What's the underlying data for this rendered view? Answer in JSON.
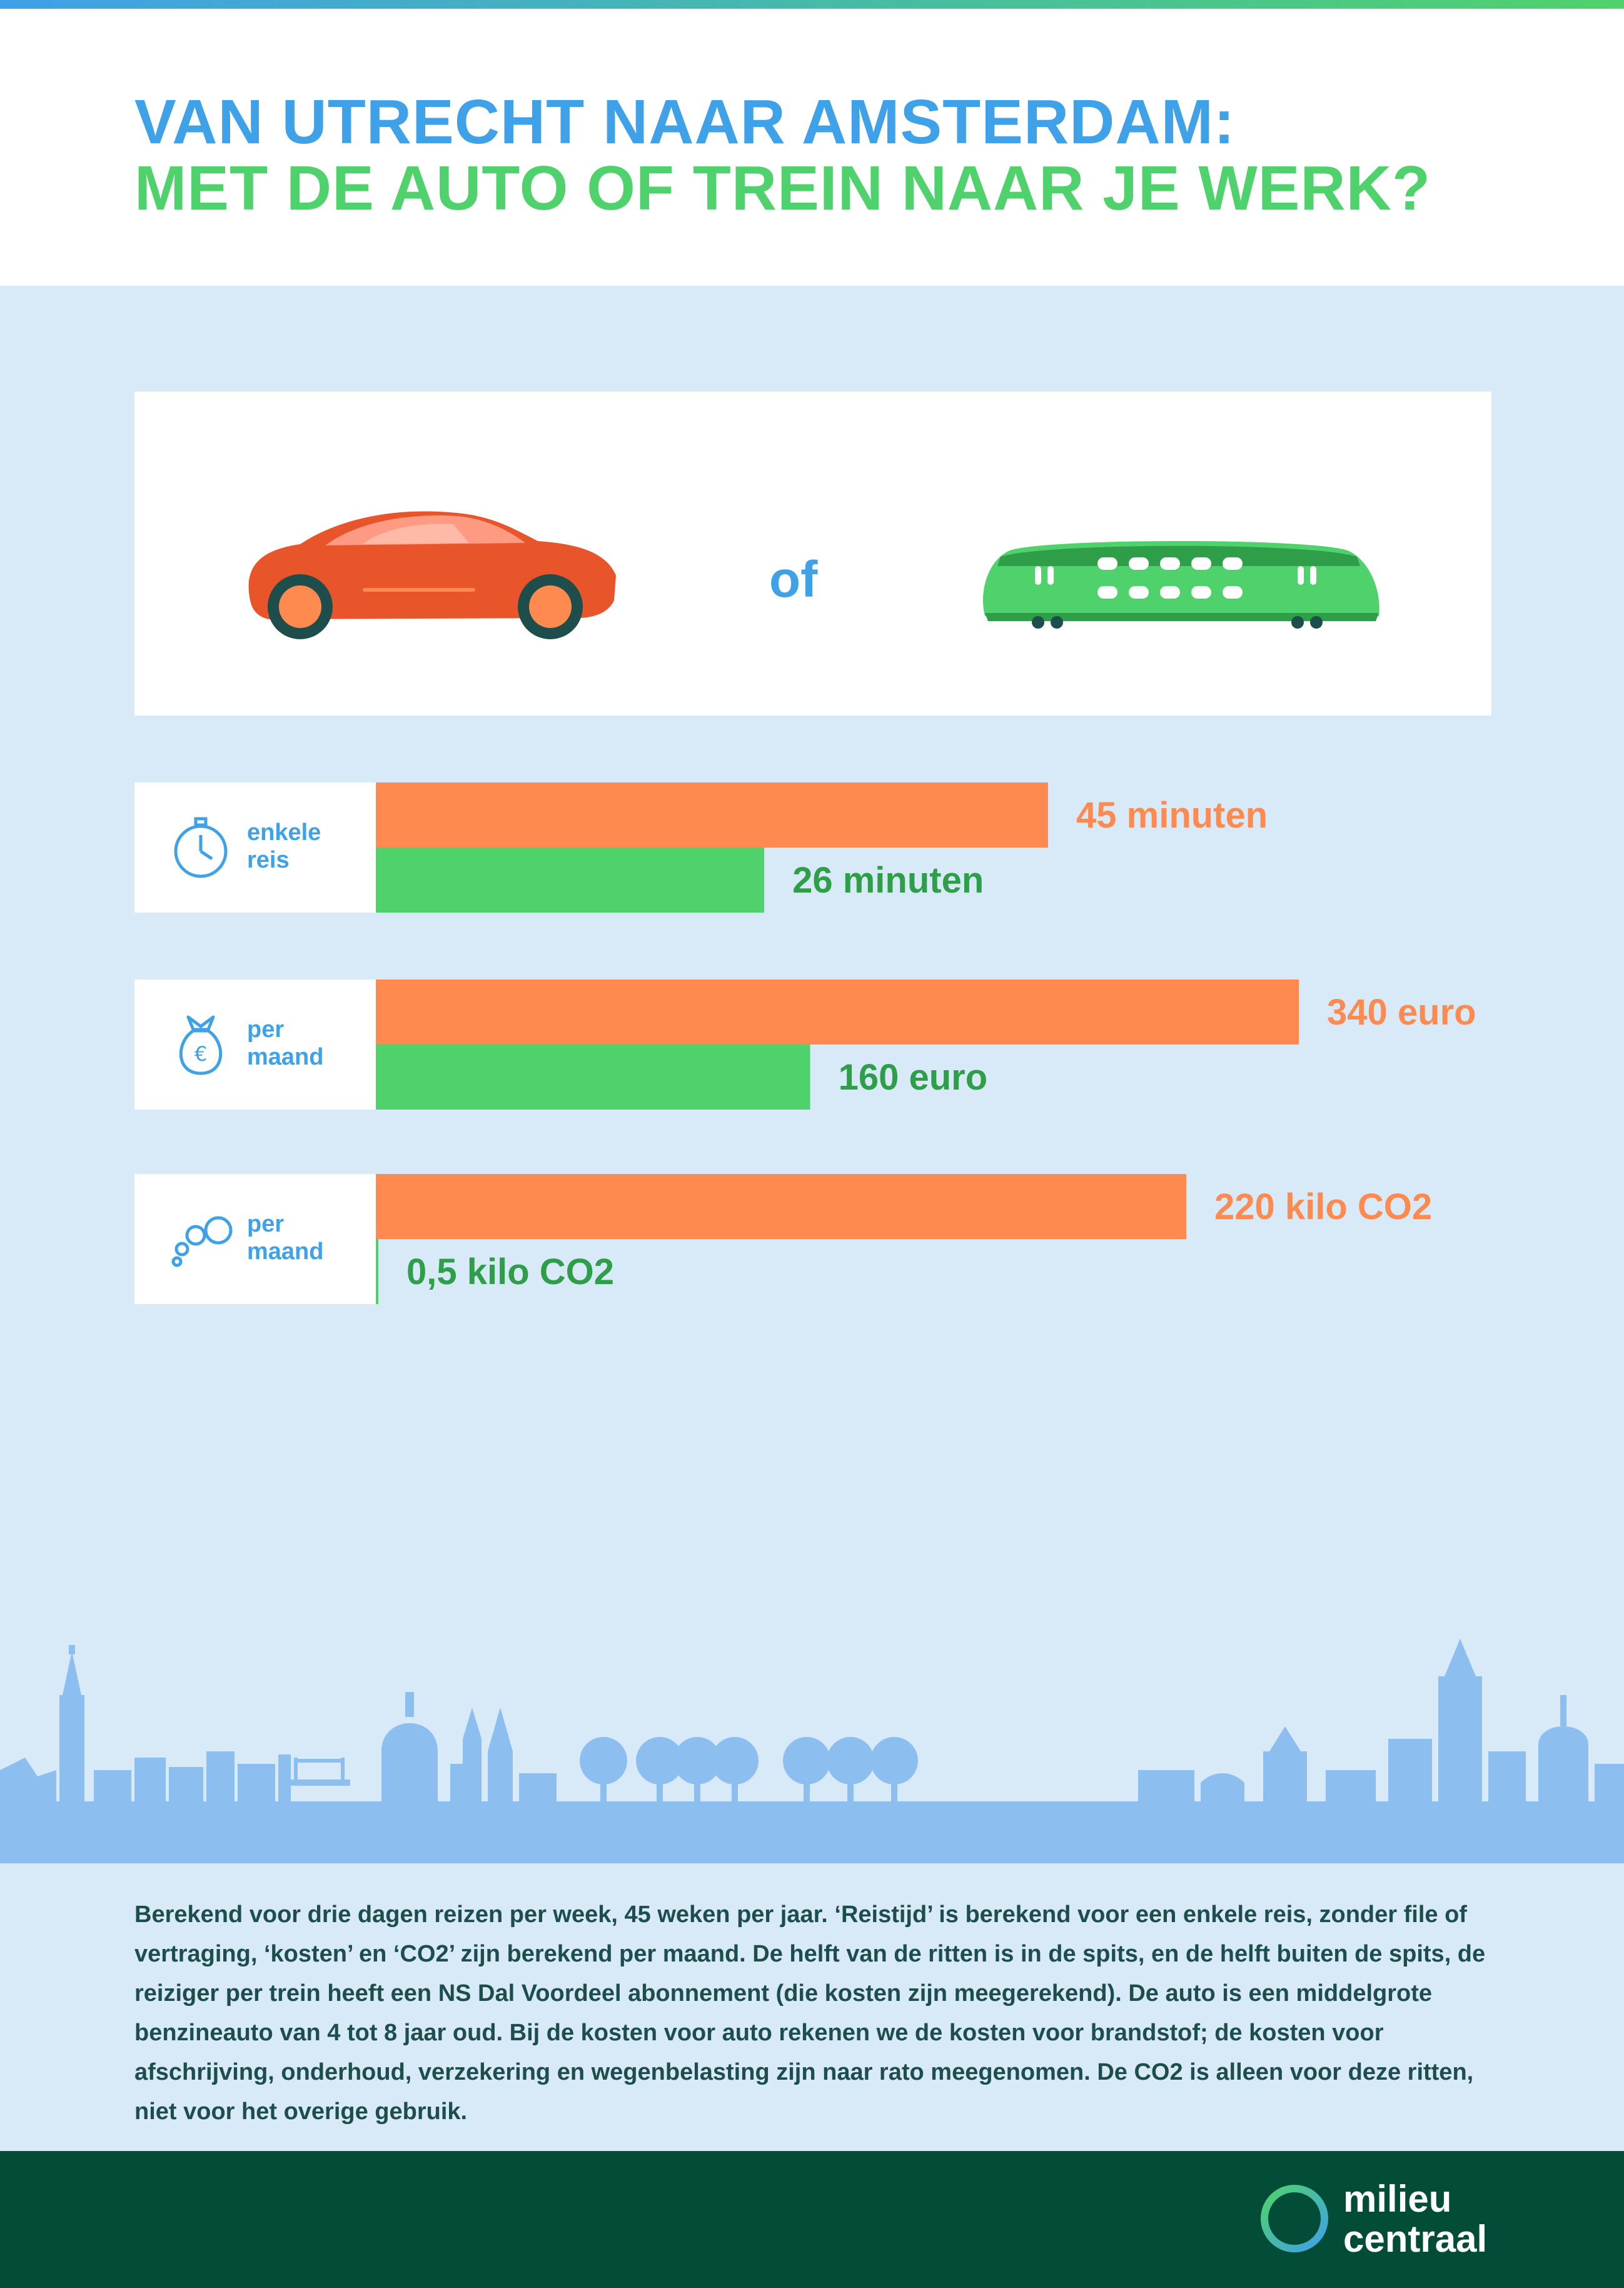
{
  "header": {
    "title_line1": "VAN UTRECHT NAAR AMSTERDAM:",
    "title_line2": "MET DE AUTO OF TREIN NAAR JE WERK?"
  },
  "vehicles": {
    "or_label": "of"
  },
  "colors": {
    "car": "#ff8a50",
    "train": "#4fd26b",
    "accent": "#3fa1e8",
    "car_text": "#ff8a50",
    "train_text": "#2f9e49"
  },
  "chart_data": [
    {
      "type": "bar",
      "label": "enkele reis",
      "icon": "stopwatch-icon",
      "series": [
        {
          "values": [
            45
          ],
          "label": "45 minuten"
        },
        {
          "values": [
            26
          ],
          "label": "26 minuten"
        }
      ]
    },
    {
      "type": "bar",
      "label": "per maand",
      "icon": "money-bag-icon",
      "series": [
        {
          "values": [
            340
          ],
          "label": "340 euro"
        },
        {
          "values": [
            160
          ],
          "label": "160 euro"
        }
      ]
    },
    {
      "type": "bar",
      "label": "per maand",
      "icon": "co2-bubbles-icon",
      "series": [
        {
          "values": [
            220
          ],
          "label": "220 kilo CO2"
        },
        {
          "values": [
            0.5
          ],
          "label": "0,5 kilo CO2"
        }
      ]
    }
  ],
  "rows": [
    {
      "label_line1": "enkele",
      "label_line2": "reis"
    },
    {
      "label_line1": "per",
      "label_line2": "maand"
    },
    {
      "label_line1": "per",
      "label_line2": "maand"
    }
  ],
  "footnote": "Berekend voor drie dagen reizen per week, 45 weken per jaar. ‘Reistijd’ is berekend voor een enkele reis, zonder file of vertraging, ‘kosten’ en ‘CO2’ zijn berekend per maand. De helft van de ritten is in de spits, en de helft buiten de spits, de reiziger per trein heeft een NS Dal Voordeel abonnement (die kosten zijn meegerekend). De auto is een middelgrote benzineauto van 4 tot 8 jaar oud. Bij de kosten voor auto rekenen we de kosten voor brandstof; de kosten voor afschrijving, onderhoud, verzekering en wegenbelasting zijn naar rato meegenomen. De CO2 is alleen voor deze ritten, niet voor het overige gebruik.",
  "logo": {
    "line1": "milieu",
    "line2": "centraal"
  }
}
